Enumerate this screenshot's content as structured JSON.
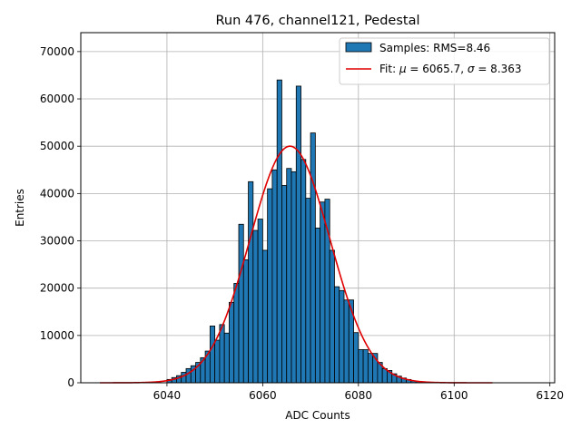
{
  "chart_data": {
    "type": "bar",
    "title": "Run 476, channel121, Pedestal",
    "xlabel": "ADC Counts",
    "ylabel": "Entries",
    "xlim": [
      6022,
      6121
    ],
    "ylim": [
      0,
      74000
    ],
    "xticks": [
      6040,
      6060,
      6080,
      6100,
      6120
    ],
    "yticks": [
      0,
      10000,
      20000,
      30000,
      40000,
      50000,
      60000,
      70000
    ],
    "grid": true,
    "legend_position": "top-right",
    "bin_width": 1,
    "bins": [
      [
        6040,
        700
      ],
      [
        6041,
        1100
      ],
      [
        6042,
        1500
      ],
      [
        6043,
        2200
      ],
      [
        6044,
        3000
      ],
      [
        6045,
        3600
      ],
      [
        6046,
        4300
      ],
      [
        6047,
        5300
      ],
      [
        6048,
        6700
      ],
      [
        6049,
        12000
      ],
      [
        6050,
        9000
      ],
      [
        6051,
        12300
      ],
      [
        6052,
        10500
      ],
      [
        6053,
        17000
      ],
      [
        6054,
        21000
      ],
      [
        6055,
        33500
      ],
      [
        6056,
        26000
      ],
      [
        6057,
        42500
      ],
      [
        6058,
        32200
      ],
      [
        6059,
        34600
      ],
      [
        6060,
        28000
      ],
      [
        6061,
        41000
      ],
      [
        6062,
        45000
      ],
      [
        6063,
        64000
      ],
      [
        6064,
        41700
      ],
      [
        6065,
        45300
      ],
      [
        6066,
        44600
      ],
      [
        6067,
        62700
      ],
      [
        6068,
        47200
      ],
      [
        6069,
        39000
      ],
      [
        6070,
        52800
      ],
      [
        6071,
        32700
      ],
      [
        6072,
        38200
      ],
      [
        6073,
        38800
      ],
      [
        6074,
        28000
      ],
      [
        6075,
        20300
      ],
      [
        6076,
        19500
      ],
      [
        6077,
        17500
      ],
      [
        6078,
        17500
      ],
      [
        6079,
        10600
      ],
      [
        6080,
        7000
      ],
      [
        6081,
        7000
      ],
      [
        6082,
        6200
      ],
      [
        6083,
        6200
      ],
      [
        6084,
        4300
      ],
      [
        6085,
        3000
      ],
      [
        6086,
        2600
      ],
      [
        6087,
        1900
      ],
      [
        6088,
        1400
      ],
      [
        6089,
        1000
      ],
      [
        6090,
        700
      ],
      [
        6091,
        400
      ],
      [
        6092,
        250
      ],
      [
        6093,
        150
      ],
      [
        6094,
        90
      ],
      [
        6095,
        50
      ],
      [
        6096,
        25
      ],
      [
        6097,
        10
      ]
    ],
    "fit": {
      "mu": 6065.7,
      "sigma": 8.363,
      "amplitude": 50000,
      "x_range": [
        6026,
        6108
      ]
    },
    "series": [
      {
        "name": "Samples: RMS=8.46",
        "kind": "histogram",
        "color": "#1f77b4",
        "edge_color": "#000000"
      },
      {
        "name": "Fit: μ = 6065.7, σ = 8.363",
        "kind": "line",
        "color": "#e00000"
      }
    ],
    "legend": {
      "entry1": {
        "prefix": "Samples: RMS=8.46"
      },
      "entry2": {
        "p1": "Fit: ",
        "mu": "μ",
        "p2": " = 6065.7, ",
        "sigma": "σ",
        "p3": " = 8.363"
      }
    }
  }
}
